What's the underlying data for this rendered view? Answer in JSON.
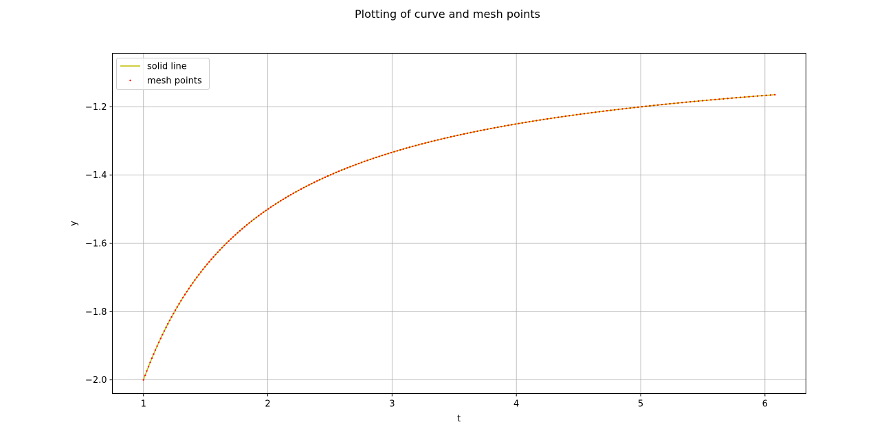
{
  "chart_data": {
    "type": "line",
    "title": "Plotting of curve and mesh points",
    "xlabel": "t",
    "ylabel": "y",
    "xlim": [
      0.75,
      6.33
    ],
    "ylim": [
      -2.04,
      -1.043
    ],
    "xticks": [
      1,
      2,
      3,
      4,
      5,
      6
    ],
    "yticks": [
      -2.0,
      -1.8,
      -1.6,
      -1.4,
      -1.2
    ],
    "xtick_labels": [
      "1",
      "2",
      "3",
      "4",
      "5",
      "6"
    ],
    "ytick_labels": [
      "−2.0",
      "−1.8",
      "−1.6",
      "−1.4",
      "−1.2"
    ],
    "grid": true,
    "legend_position": "upper-left",
    "curve": {
      "function": "y = -1 - 1/t",
      "t_start": 1.0,
      "t_end": 6.08
    },
    "series": [
      {
        "name": "solid line",
        "kind": "line",
        "color": "#bfbf00"
      },
      {
        "name": "mesh points",
        "kind": "points",
        "color": "#ff0000",
        "count": 211
      }
    ]
  }
}
